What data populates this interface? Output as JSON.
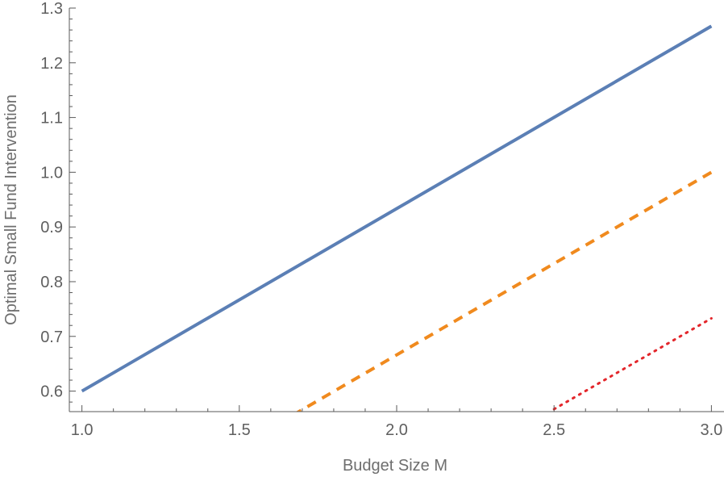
{
  "chart_data": {
    "type": "line",
    "title": "",
    "xlabel": "Budget Size M",
    "ylabel": "Optimal Small Fund Intervention",
    "xlim": [
      0.96,
      3.04
    ],
    "ylim": [
      0.5625,
      1.3
    ],
    "x_ticks": [
      1.0,
      1.5,
      2.0,
      2.5,
      3.0
    ],
    "x_tick_labels": [
      "1.0",
      "1.5",
      "2.0",
      "2.5",
      "3.0"
    ],
    "y_ticks": [
      0.6,
      0.7,
      0.8,
      0.9,
      1.0,
      1.1,
      1.2,
      1.3
    ],
    "y_tick_labels": [
      "0.6",
      "0.7",
      "0.8",
      "0.9",
      "1.0",
      "1.1",
      "1.2",
      "1.3"
    ],
    "grid": false,
    "series": [
      {
        "color": "#5b7fb5",
        "style": "solid",
        "x": [
          1.0,
          3.0
        ],
        "y": [
          0.6,
          1.267
        ]
      },
      {
        "color": "#f08a1e",
        "style": "dashed",
        "x": [
          1.67,
          3.0
        ],
        "y": [
          0.556,
          1.0
        ]
      },
      {
        "color": "#e3262b",
        "style": "dotted",
        "x": [
          2.5,
          3.0
        ],
        "y": [
          0.567,
          0.733
        ]
      }
    ]
  }
}
